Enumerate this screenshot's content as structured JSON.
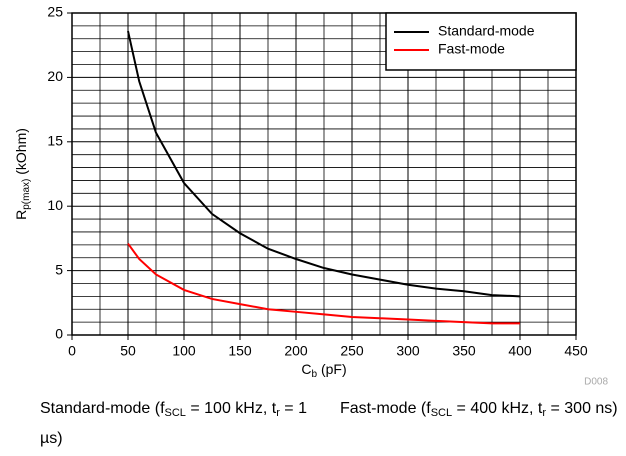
{
  "chart_data": {
    "type": "line",
    "xlabel": {
      "main": "C",
      "sub": "b",
      "rest": " (pF)"
    },
    "ylabel": {
      "main": "R",
      "sub": "p(max)",
      "rest": " (kOhm)"
    },
    "x": [
      50,
      60,
      75,
      100,
      125,
      150,
      175,
      200,
      225,
      250,
      275,
      300,
      325,
      350,
      375,
      400
    ],
    "series": [
      {
        "name": "Standard-mode",
        "color": "#000000",
        "values": [
          23.6,
          19.7,
          15.7,
          11.8,
          9.4,
          7.9,
          6.7,
          5.9,
          5.2,
          4.7,
          4.3,
          3.9,
          3.6,
          3.4,
          3.1,
          3.0
        ]
      },
      {
        "name": "Fast-mode",
        "color": "#ff0000",
        "values": [
          7.1,
          5.9,
          4.7,
          3.5,
          2.8,
          2.4,
          2.0,
          1.8,
          1.6,
          1.4,
          1.3,
          1.2,
          1.1,
          1.0,
          0.9,
          0.9
        ]
      }
    ],
    "xlim": [
      0,
      450
    ],
    "xticks": [
      0,
      50,
      100,
      150,
      200,
      250,
      300,
      350,
      400,
      450
    ],
    "ylim": [
      0,
      25
    ],
    "yticks": [
      0,
      5,
      10,
      15,
      20,
      25
    ],
    "grid": true,
    "minor_grid_divisions": [
      2,
      5
    ],
    "legend": "upper right",
    "watermark": "D008",
    "captions": [
      {
        "main": "Standard-mode (f",
        "sub1": "SCL",
        "mid": " = 100 kHz, t",
        "sub2": "r",
        "rest": " = 1 µs)"
      },
      {
        "main": "Fast-mode (f",
        "sub1": "SCL",
        "mid": " = 400 kHz, t",
        "sub2": "r",
        "rest": " = 300 ns)"
      }
    ]
  }
}
